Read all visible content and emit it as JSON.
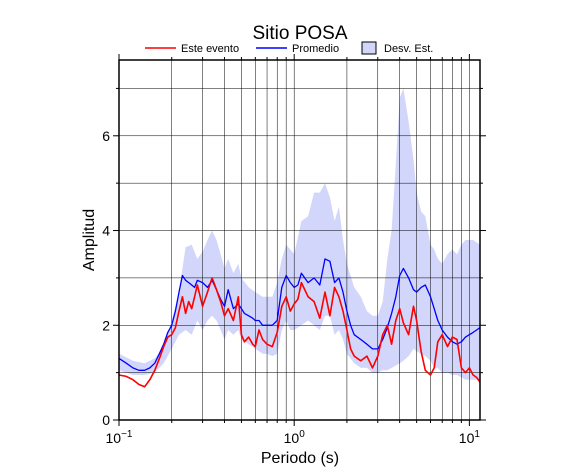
{
  "chart_data": {
    "type": "line",
    "title": "Sitio POSA",
    "xlabel": "Periodo (s)",
    "ylabel": "Amplitud",
    "xscale": "log",
    "xlim": [
      0.1,
      11.5
    ],
    "ylim": [
      0,
      7.6
    ],
    "grid": true,
    "legend_position": "top",
    "x_ticks": [
      {
        "value": 0.1,
        "base": "10",
        "exp": "−1"
      },
      {
        "value": 1,
        "base": "10",
        "exp": "0"
      },
      {
        "value": 10,
        "base": "10",
        "exp": "1"
      }
    ],
    "y_ticks": [
      0,
      2,
      4,
      6
    ],
    "colors": {
      "event": "#ff0000",
      "mean": "#0000ff",
      "band": "#d2d6fa"
    },
    "legend": [
      {
        "label": "Este evento",
        "kind": "line",
        "color": "#ff0000"
      },
      {
        "label": "Promedio",
        "kind": "line",
        "color": "#0000ff"
      },
      {
        "label": "Desv. Est.",
        "kind": "box",
        "color": "#d2d6fa"
      }
    ],
    "series": [
      {
        "name": "Este evento",
        "x": [
          0.1,
          0.11,
          0.12,
          0.13,
          0.14,
          0.15,
          0.16,
          0.17,
          0.18,
          0.19,
          0.2,
          0.21,
          0.22,
          0.23,
          0.24,
          0.25,
          0.26,
          0.27,
          0.28,
          0.3,
          0.32,
          0.34,
          0.36,
          0.38,
          0.4,
          0.42,
          0.45,
          0.48,
          0.5,
          0.52,
          0.55,
          0.58,
          0.6,
          0.63,
          0.66,
          0.7,
          0.75,
          0.8,
          0.85,
          0.9,
          0.95,
          1.0,
          1.05,
          1.1,
          1.2,
          1.3,
          1.4,
          1.5,
          1.6,
          1.7,
          1.8,
          1.9,
          2.0,
          2.1,
          2.2,
          2.4,
          2.6,
          2.8,
          3.0,
          3.2,
          3.4,
          3.6,
          3.8,
          4.0,
          4.2,
          4.5,
          4.8,
          5.0,
          5.3,
          5.6,
          6.0,
          6.3,
          6.6,
          7.0,
          7.5,
          8.0,
          8.5,
          9.0,
          9.5,
          10.0,
          10.5,
          11.0,
          11.5
        ],
        "y": [
          0.95,
          0.92,
          0.85,
          0.75,
          0.7,
          0.85,
          1.05,
          1.3,
          1.55,
          1.75,
          1.8,
          1.95,
          2.3,
          2.6,
          2.25,
          2.5,
          2.35,
          2.6,
          2.85,
          2.4,
          2.7,
          3.0,
          2.75,
          2.5,
          2.2,
          2.35,
          2.1,
          2.6,
          1.8,
          1.65,
          1.75,
          1.6,
          1.55,
          1.9,
          1.7,
          1.6,
          1.55,
          1.85,
          2.4,
          2.6,
          2.3,
          2.45,
          2.55,
          2.9,
          2.6,
          2.5,
          2.15,
          2.7,
          2.2,
          2.8,
          2.6,
          2.3,
          1.9,
          1.5,
          1.35,
          1.25,
          1.35,
          1.1,
          1.35,
          1.8,
          2.0,
          1.6,
          2.1,
          2.35,
          2.05,
          1.8,
          2.4,
          2.1,
          1.45,
          1.05,
          0.95,
          1.1,
          1.65,
          1.8,
          1.55,
          1.75,
          1.7,
          1.1,
          1.0,
          1.1,
          0.95,
          0.9,
          0.8
        ]
      },
      {
        "name": "Promedio",
        "x": [
          0.1,
          0.11,
          0.12,
          0.13,
          0.14,
          0.15,
          0.16,
          0.17,
          0.18,
          0.19,
          0.2,
          0.21,
          0.22,
          0.23,
          0.24,
          0.25,
          0.26,
          0.27,
          0.28,
          0.3,
          0.32,
          0.34,
          0.36,
          0.38,
          0.4,
          0.42,
          0.45,
          0.48,
          0.5,
          0.52,
          0.55,
          0.58,
          0.6,
          0.63,
          0.66,
          0.7,
          0.75,
          0.8,
          0.85,
          0.9,
          0.95,
          1.0,
          1.05,
          1.1,
          1.2,
          1.3,
          1.4,
          1.5,
          1.6,
          1.7,
          1.8,
          1.9,
          2.0,
          2.1,
          2.2,
          2.4,
          2.6,
          2.8,
          3.0,
          3.2,
          3.4,
          3.6,
          3.8,
          4.0,
          4.2,
          4.5,
          4.8,
          5.0,
          5.3,
          5.6,
          6.0,
          6.3,
          6.6,
          7.0,
          7.5,
          8.0,
          8.5,
          9.0,
          9.5,
          10.0,
          10.5,
          11.0,
          11.5
        ],
        "y": [
          1.3,
          1.2,
          1.1,
          1.05,
          1.05,
          1.1,
          1.2,
          1.4,
          1.6,
          1.85,
          2.0,
          2.3,
          2.7,
          3.05,
          2.95,
          2.9,
          2.85,
          2.8,
          2.95,
          2.9,
          2.8,
          2.95,
          2.75,
          2.55,
          2.4,
          2.75,
          2.35,
          2.45,
          2.35,
          2.25,
          2.2,
          2.15,
          2.1,
          2.1,
          2.0,
          2.0,
          2.0,
          2.1,
          2.8,
          3.05,
          2.9,
          2.8,
          2.85,
          3.1,
          2.9,
          3.0,
          2.85,
          3.4,
          3.35,
          2.9,
          3.0,
          2.7,
          2.3,
          2.0,
          1.8,
          1.7,
          1.6,
          1.5,
          1.5,
          1.7,
          1.95,
          2.25,
          2.6,
          3.05,
          3.2,
          3.0,
          2.75,
          2.7,
          2.8,
          2.85,
          2.6,
          2.35,
          2.1,
          1.9,
          1.75,
          1.65,
          1.6,
          1.65,
          1.75,
          1.8,
          1.85,
          1.9,
          1.95
        ]
      }
    ],
    "band": {
      "name": "Desv. Est.",
      "x": [
        0.1,
        0.12,
        0.14,
        0.16,
        0.18,
        0.2,
        0.22,
        0.24,
        0.26,
        0.28,
        0.3,
        0.32,
        0.34,
        0.36,
        0.38,
        0.4,
        0.42,
        0.45,
        0.48,
        0.5,
        0.55,
        0.6,
        0.66,
        0.7,
        0.75,
        0.8,
        0.85,
        0.9,
        0.95,
        1.0,
        1.1,
        1.2,
        1.3,
        1.4,
        1.5,
        1.6,
        1.7,
        1.8,
        1.9,
        2.0,
        2.2,
        2.4,
        2.6,
        2.8,
        3.0,
        3.2,
        3.4,
        3.6,
        3.8,
        4.0,
        4.2,
        4.5,
        4.8,
        5.0,
        5.3,
        5.6,
        6.0,
        6.3,
        6.6,
        7.0,
        7.5,
        8.0,
        8.5,
        9.0,
        9.5,
        10.0,
        10.5,
        11.0,
        11.5
      ],
      "upper": [
        1.4,
        1.25,
        1.2,
        1.3,
        1.55,
        2.1,
        2.7,
        3.65,
        3.7,
        3.4,
        3.55,
        3.8,
        4.0,
        3.8,
        3.5,
        3.2,
        3.4,
        3.1,
        3.3,
        3.0,
        2.8,
        2.7,
        2.6,
        2.6,
        2.6,
        2.9,
        3.4,
        3.7,
        3.6,
        3.5,
        4.2,
        4.3,
        4.8,
        4.8,
        5.0,
        4.7,
        4.2,
        4.5,
        3.8,
        3.3,
        2.8,
        2.6,
        2.3,
        2.2,
        2.2,
        2.5,
        3.4,
        4.0,
        5.4,
        6.8,
        7.0,
        6.3,
        5.5,
        4.8,
        4.4,
        4.3,
        3.7,
        3.6,
        3.4,
        3.3,
        3.5,
        3.6,
        3.5,
        3.7,
        3.8,
        3.8,
        3.8,
        3.75,
        3.7
      ],
      "lower": [
        1.05,
        0.95,
        0.95,
        1.0,
        1.2,
        1.5,
        1.8,
        1.9,
        1.8,
        2.1,
        1.9,
        2.1,
        2.2,
        2.1,
        1.9,
        1.7,
        1.9,
        1.8,
        1.9,
        1.7,
        1.6,
        1.5,
        1.4,
        1.4,
        1.35,
        1.4,
        1.9,
        2.1,
        1.9,
        1.9,
        2.0,
        2.1,
        2.0,
        1.9,
        2.2,
        2.2,
        1.8,
        1.9,
        1.7,
        1.4,
        1.2,
        1.1,
        1.1,
        1.0,
        1.0,
        1.05,
        1.05,
        1.1,
        1.15,
        1.2,
        1.25,
        1.35,
        1.5,
        1.45,
        1.4,
        1.35,
        1.25,
        1.1,
        1.1,
        1.0,
        1.0,
        0.95,
        0.95,
        0.9,
        0.85,
        0.85,
        0.85,
        0.85,
        0.85
      ]
    }
  }
}
